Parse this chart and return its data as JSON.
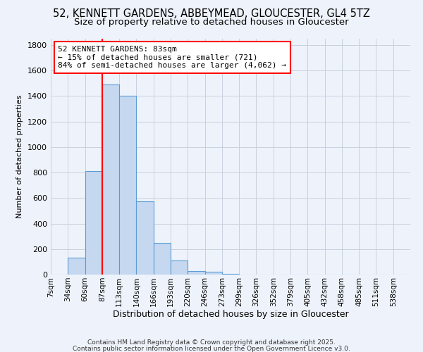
{
  "title": "52, KENNETT GARDENS, ABBEYMEAD, GLOUCESTER, GL4 5TZ",
  "subtitle": "Size of property relative to detached houses in Gloucester",
  "xlabel": "Distribution of detached houses by size in Gloucester",
  "ylabel": "Number of detached properties",
  "bar_labels": [
    "7sqm",
    "34sqm",
    "60sqm",
    "87sqm",
    "113sqm",
    "140sqm",
    "166sqm",
    "193sqm",
    "220sqm",
    "246sqm",
    "273sqm",
    "299sqm",
    "326sqm",
    "352sqm",
    "379sqm",
    "405sqm",
    "432sqm",
    "458sqm",
    "485sqm",
    "511sqm",
    "538sqm"
  ],
  "bar_values": [
    0,
    135,
    810,
    1490,
    1400,
    575,
    250,
    110,
    30,
    20,
    5,
    0,
    0,
    0,
    0,
    0,
    0,
    0,
    0,
    0,
    0
  ],
  "bar_color": "#c5d8f0",
  "bar_edge_color": "#5b9bd5",
  "property_line_color": "red",
  "annotation_title": "52 KENNETT GARDENS: 83sqm",
  "annotation_line1": "← 15% of detached houses are smaller (721)",
  "annotation_line2": "84% of semi-detached houses are larger (4,062) →",
  "annotation_box_color": "white",
  "annotation_box_edge": "red",
  "ylim": [
    0,
    1850
  ],
  "yticks": [
    0,
    200,
    400,
    600,
    800,
    1000,
    1200,
    1400,
    1600,
    1800
  ],
  "footer1": "Contains HM Land Registry data © Crown copyright and database right 2025.",
  "footer2": "Contains public sector information licensed under the Open Government Licence v3.0.",
  "bg_color": "#eef3fb",
  "grid_color": "#c8d0de",
  "title_fontsize": 10.5,
  "subtitle_fontsize": 9.5,
  "ylabel_fontsize": 8,
  "xlabel_fontsize": 9
}
